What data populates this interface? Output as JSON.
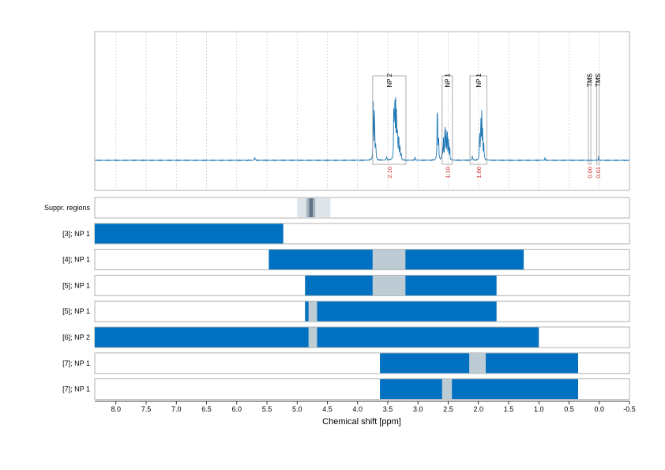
{
  "chart_data": {
    "type": "nmr-spectrum-with-range-bars",
    "xlabel": "Chemical shift [ppm]",
    "xlim": [
      8.35,
      -0.5
    ],
    "x_ticks": [
      8.0,
      7.5,
      7.0,
      6.5,
      6.0,
      5.5,
      5.0,
      4.5,
      4.0,
      3.5,
      3.0,
      2.5,
      2.0,
      1.5,
      1.0,
      0.5,
      0.0,
      -0.5
    ],
    "x_tick_labels": [
      "8.0",
      "7.5",
      "7.0",
      "6.5",
      "6.0",
      "5.5",
      "5.0",
      "4.5",
      "4.0",
      "3.5",
      "3.0",
      "2.5",
      "2.0",
      "1.5",
      "1.0",
      "0.5",
      "0.0",
      "-0.5"
    ],
    "grid": true,
    "colors": {
      "spectrum": "#1f77b4",
      "bar": "#0070c0",
      "gap": "#bccbd4",
      "integral": "#d62728",
      "box": "#999999",
      "frame": "#b0b0b0",
      "suppr_light": "#dde4ea",
      "suppr_mid": "#a9b6c2",
      "suppr_dark": "#5e7185"
    },
    "spectrum": {
      "peaks": [
        {
          "ppm": 5.7,
          "height": 0.04,
          "width": 0.006
        },
        {
          "ppm": 3.74,
          "height": 0.92,
          "width": 0.004
        },
        {
          "ppm": 3.72,
          "height": 0.8,
          "width": 0.004
        },
        {
          "ppm": 3.7,
          "height": 0.22,
          "width": 0.005
        },
        {
          "ppm": 3.4,
          "height": 0.78,
          "width": 0.004
        },
        {
          "ppm": 3.385,
          "height": 0.92,
          "width": 0.004
        },
        {
          "ppm": 3.37,
          "height": 0.7,
          "width": 0.004
        },
        {
          "ppm": 3.355,
          "height": 0.62,
          "width": 0.004
        },
        {
          "ppm": 3.34,
          "height": 0.48,
          "width": 0.004
        },
        {
          "ppm": 3.32,
          "height": 0.4,
          "width": 0.004
        },
        {
          "ppm": 3.3,
          "height": 0.22,
          "width": 0.004
        },
        {
          "ppm": 3.28,
          "height": 0.1,
          "width": 0.004
        },
        {
          "ppm": 3.52,
          "height": 0.05,
          "width": 0.005
        },
        {
          "ppm": 3.05,
          "height": 0.04,
          "width": 0.005
        },
        {
          "ppm": 2.68,
          "height": 0.97,
          "width": 0.004
        },
        {
          "ppm": 2.66,
          "height": 0.4,
          "width": 0.004
        },
        {
          "ppm": 2.6,
          "height": 0.18,
          "width": 0.004
        },
        {
          "ppm": 2.58,
          "height": 0.3,
          "width": 0.004
        },
        {
          "ppm": 2.555,
          "height": 0.56,
          "width": 0.004
        },
        {
          "ppm": 2.535,
          "height": 0.46,
          "width": 0.004
        },
        {
          "ppm": 2.515,
          "height": 0.4,
          "width": 0.004
        },
        {
          "ppm": 2.495,
          "height": 0.28,
          "width": 0.004
        },
        {
          "ppm": 2.475,
          "height": 0.16,
          "width": 0.004
        },
        {
          "ppm": 2.1,
          "height": 0.06,
          "width": 0.005
        },
        {
          "ppm": 1.98,
          "height": 0.46,
          "width": 0.004
        },
        {
          "ppm": 1.96,
          "height": 0.64,
          "width": 0.004
        },
        {
          "ppm": 1.945,
          "height": 0.58,
          "width": 0.004
        },
        {
          "ppm": 1.93,
          "height": 0.4,
          "width": 0.004
        },
        {
          "ppm": 1.91,
          "height": 0.24,
          "width": 0.004
        },
        {
          "ppm": 0.9,
          "height": 0.03,
          "width": 0.005
        },
        {
          "ppm": 0.01,
          "height": 0.05,
          "width": 0.004
        }
      ]
    },
    "annotations": [
      {
        "label": "NP 2",
        "x1": 3.75,
        "x2": 3.2,
        "integral": "2.10"
      },
      {
        "label": "NP 1",
        "x1": 2.6,
        "x2": 2.43,
        "integral": "1.10"
      },
      {
        "label": "NP 1",
        "x1": 2.14,
        "x2": 1.86,
        "integral": "1.00"
      },
      {
        "label": "TMS",
        "x1": 0.18,
        "x2": 0.14,
        "integral": "0.00"
      },
      {
        "label": "TMS",
        "x1": 0.04,
        "x2": 0.0,
        "integral": "0.01"
      }
    ],
    "suppressed_regions": [
      {
        "x1": 5.0,
        "x2": 4.45,
        "shade": "light"
      },
      {
        "x1": 4.85,
        "x2": 4.7,
        "shade": "mid"
      },
      {
        "x1": 4.8,
        "x2": 4.74,
        "shade": "dark"
      }
    ],
    "rows": [
      {
        "label": "Suppr. regions",
        "segments": [],
        "gaps": []
      },
      {
        "label": "[3]; NP 1",
        "segments": [
          [
            8.35,
            5.23
          ]
        ],
        "gaps": []
      },
      {
        "label": "[4]; NP 1",
        "segments": [
          [
            5.47,
            3.75
          ],
          [
            3.21,
            1.25
          ]
        ],
        "gaps": [
          [
            3.75,
            3.21
          ]
        ]
      },
      {
        "label": "[5]; NP 1",
        "segments": [
          [
            4.87,
            3.75
          ],
          [
            3.21,
            1.7
          ]
        ],
        "gaps": [
          [
            3.75,
            3.21
          ]
        ]
      },
      {
        "label": "[5]; NP 1",
        "segments": [
          [
            4.87,
            4.81
          ],
          [
            4.67,
            1.7
          ]
        ],
        "gaps": [
          [
            4.81,
            4.67
          ]
        ]
      },
      {
        "label": "[6]; NP 2",
        "segments": [
          [
            8.35,
            4.81
          ],
          [
            4.67,
            1.0
          ]
        ],
        "gaps": [
          [
            4.81,
            4.67
          ]
        ]
      },
      {
        "label": "[7]; NP 1",
        "segments": [
          [
            3.63,
            2.15
          ],
          [
            1.88,
            0.35
          ]
        ],
        "gaps": [
          [
            2.15,
            1.88
          ]
        ]
      },
      {
        "label": "[7]; NP 1",
        "segments": [
          [
            3.63,
            2.6
          ],
          [
            2.44,
            0.35
          ]
        ],
        "gaps": [
          [
            2.6,
            2.44
          ]
        ]
      }
    ]
  }
}
